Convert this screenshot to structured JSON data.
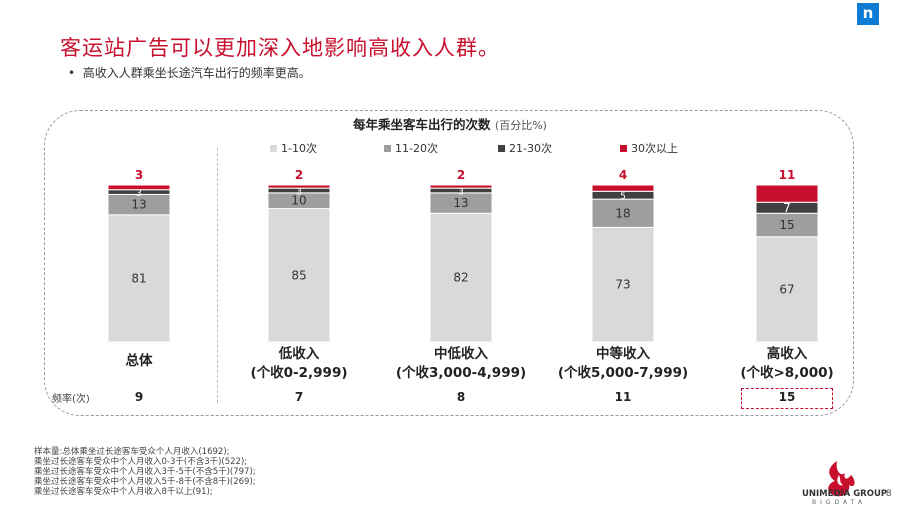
{
  "title": "客运站广告可以更加深入地影响高收入人群。",
  "bullet": "高收入人群乘坐长途汽车出行的频率更高。",
  "bullet_mark": "•",
  "corner_logo": "n",
  "chart_title": "每年乘坐客车出行的次数",
  "chart_title_unit": "(百分比%)",
  "colors": {
    "s1": "#d9d9d9",
    "s2": "#9e9e9e",
    "s3": "#404040",
    "s4": "#c8102e",
    "accent": "#c8102e"
  },
  "chart_data": {
    "type": "bar",
    "stacked": true,
    "categories": [
      "总体",
      "低收入\n(个收0-2,999)",
      "中低收入\n(个收3,000-4,999)",
      "中等收入\n(个收5,000-7,999)",
      "高收入\n(个收>8,000)"
    ],
    "series": [
      {
        "name": "1-10次",
        "values": [
          81,
          85,
          82,
          73,
          67
        ]
      },
      {
        "name": "11-20次",
        "values": [
          13,
          10,
          13,
          18,
          15
        ]
      },
      {
        "name": "21-30次",
        "values": [
          3,
          3,
          3,
          5,
          7
        ]
      },
      {
        "name": "30次以上",
        "values": [
          3,
          2,
          2,
          4,
          11
        ]
      }
    ],
    "ylim": [
      0,
      100
    ],
    "legend": "top",
    "grid": false
  },
  "frequency": {
    "label": "频率(次)",
    "values": [
      "9",
      "7",
      "8",
      "11",
      "15"
    ]
  },
  "footnotes": [
    "样本量:总体乘坐过长途客车受众个人月收入(1692);",
    "乘坐过长途客车受众中个人月收入0-3千(不含3千)(522);",
    "乘坐过长途客车受众中个人月收入3千-5千(不含5千)(797);",
    "乘坐过长途客车受众中个人月收入5千-8千(不含8千)(269);",
    "乘坐过长途客车受众中个人月收入8千以上(91);"
  ],
  "brand": {
    "name": "UNIMEDIA GROUP",
    "sub": "BIGDATA"
  },
  "page_number": "8"
}
